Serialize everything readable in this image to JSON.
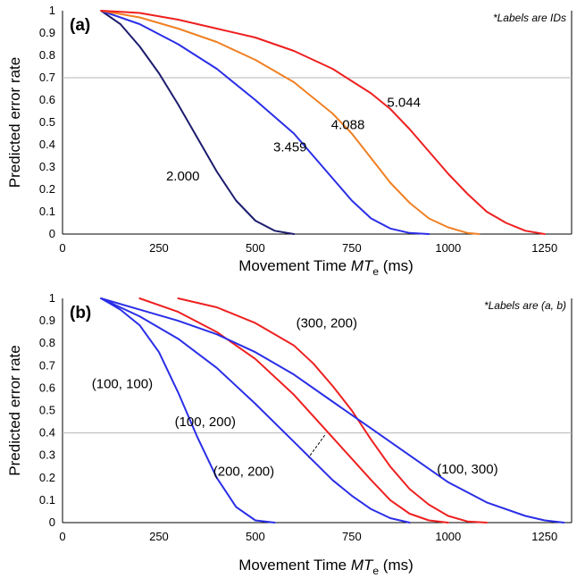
{
  "chart_data": [
    {
      "type": "line",
      "panel_label": "(a)",
      "note": "*Labels are IDs",
      "xlabel": "Movement Time",
      "xlabel_var": "MT",
      "xlabel_sub": "e",
      "xlabel_unit": " (ms)",
      "ylabel": "Predicted error rate",
      "xlim": [
        0,
        1320
      ],
      "ylim": [
        0,
        1
      ],
      "x_ticks": [
        "0",
        "250",
        "500",
        "750",
        "1000",
        "1250"
      ],
      "y_ticks": [
        "0",
        "0.1",
        "0.2",
        "0.3",
        "0.4",
        "0.5",
        "0.6",
        "0.7",
        "0.8",
        "0.9",
        "1"
      ],
      "reference_line_y": 0.7,
      "grid": false,
      "series": [
        {
          "name": "2.000",
          "color": "#1c1c6e",
          "label_at": [
            312,
            0.24
          ],
          "points": [
            [
              100,
              1
            ],
            [
              150,
              0.94
            ],
            [
              200,
              0.84
            ],
            [
              250,
              0.72
            ],
            [
              300,
              0.58
            ],
            [
              350,
              0.43
            ],
            [
              400,
              0.28
            ],
            [
              450,
              0.15
            ],
            [
              500,
              0.06
            ],
            [
              550,
              0.015
            ],
            [
              600,
              0
            ]
          ]
        },
        {
          "name": "3.459",
          "color": "#2a2ee6",
          "label_at": [
            590,
            0.37
          ],
          "points": [
            [
              100,
              1
            ],
            [
              200,
              0.94
            ],
            [
              300,
              0.85
            ],
            [
              400,
              0.74
            ],
            [
              500,
              0.6
            ],
            [
              600,
              0.45
            ],
            [
              650,
              0.35
            ],
            [
              700,
              0.25
            ],
            [
              750,
              0.15
            ],
            [
              800,
              0.07
            ],
            [
              850,
              0.025
            ],
            [
              900,
              0.005
            ],
            [
              950,
              0
            ]
          ]
        },
        {
          "name": "4.088",
          "color": "#f08024",
          "label_at": [
            740,
            0.47
          ],
          "points": [
            [
              100,
              1
            ],
            [
              200,
              0.97
            ],
            [
              300,
              0.92
            ],
            [
              400,
              0.86
            ],
            [
              500,
              0.78
            ],
            [
              600,
              0.68
            ],
            [
              700,
              0.54
            ],
            [
              750,
              0.45
            ],
            [
              800,
              0.34
            ],
            [
              850,
              0.23
            ],
            [
              900,
              0.14
            ],
            [
              950,
              0.07
            ],
            [
              1000,
              0.03
            ],
            [
              1050,
              0.005
            ],
            [
              1080,
              0
            ]
          ]
        },
        {
          "name": "5.044",
          "color": "#ee2020",
          "label_at": [
            885,
            0.57
          ],
          "points": [
            [
              100,
              1
            ],
            [
              200,
              0.99
            ],
            [
              300,
              0.96
            ],
            [
              400,
              0.92
            ],
            [
              500,
              0.88
            ],
            [
              600,
              0.82
            ],
            [
              700,
              0.74
            ],
            [
              800,
              0.63
            ],
            [
              850,
              0.56
            ],
            [
              900,
              0.47
            ],
            [
              950,
              0.37
            ],
            [
              1000,
              0.27
            ],
            [
              1050,
              0.18
            ],
            [
              1100,
              0.1
            ],
            [
              1150,
              0.05
            ],
            [
              1200,
              0.015
            ],
            [
              1250,
              0
            ]
          ]
        }
      ]
    },
    {
      "type": "line",
      "panel_label": "(b)",
      "note": "*Labels are (a, b)",
      "xlabel": "Movement Time",
      "xlabel_var": "MT",
      "xlabel_sub": "e",
      "xlabel_unit": " (ms)",
      "ylabel": "Predicted error rate",
      "xlim": [
        0,
        1320
      ],
      "ylim": [
        0,
        1
      ],
      "x_ticks": [
        "0",
        "250",
        "500",
        "750",
        "1000",
        "1250"
      ],
      "y_ticks": [
        "0",
        "0.1",
        "0.2",
        "0.3",
        "0.4",
        "0.5",
        "0.6",
        "0.7",
        "0.8",
        "0.9",
        "1"
      ],
      "reference_line_y": 0.4,
      "grid": false,
      "series": [
        {
          "name": "(100, 100)",
          "color": "#2a2ee6",
          "label_at": [
            155,
            0.6
          ],
          "points": [
            [
              100,
              1
            ],
            [
              150,
              0.95
            ],
            [
              200,
              0.88
            ],
            [
              250,
              0.76
            ],
            [
              300,
              0.58
            ],
            [
              350,
              0.38
            ],
            [
              400,
              0.2
            ],
            [
              450,
              0.07
            ],
            [
              500,
              0.01
            ],
            [
              550,
              0
            ]
          ]
        },
        {
          "name": "(100, 200)",
          "color": "#2a2ee6",
          "label_at": [
            370,
            0.43
          ],
          "points": [
            [
              100,
              1
            ],
            [
              200,
              0.92
            ],
            [
              300,
              0.82
            ],
            [
              400,
              0.69
            ],
            [
              500,
              0.53
            ],
            [
              600,
              0.36
            ],
            [
              700,
              0.19
            ],
            [
              750,
              0.12
            ],
            [
              800,
              0.06
            ],
            [
              850,
              0.02
            ],
            [
              900,
              0
            ]
          ]
        },
        {
          "name": "(200, 200)",
          "color": "#ee2020",
          "label_at": [
            470,
            0.21
          ],
          "points": [
            [
              200,
              1
            ],
            [
              300,
              0.94
            ],
            [
              400,
              0.85
            ],
            [
              500,
              0.73
            ],
            [
              600,
              0.57
            ],
            [
              700,
              0.38
            ],
            [
              800,
              0.19
            ],
            [
              850,
              0.1
            ],
            [
              900,
              0.04
            ],
            [
              950,
              0.01
            ],
            [
              1000,
              0
            ]
          ]
        },
        {
          "name": "(300, 200)",
          "color": "#ee2020",
          "label_at": [
            685,
            0.87
          ],
          "points": [
            [
              300,
              1
            ],
            [
              400,
              0.96
            ],
            [
              500,
              0.89
            ],
            [
              600,
              0.79
            ],
            [
              650,
              0.71
            ],
            [
              700,
              0.61
            ],
            [
              750,
              0.5
            ],
            [
              800,
              0.37
            ],
            [
              850,
              0.25
            ],
            [
              900,
              0.15
            ],
            [
              950,
              0.08
            ],
            [
              1000,
              0.03
            ],
            [
              1050,
              0.005
            ],
            [
              1100,
              0
            ]
          ]
        },
        {
          "name": "(100, 300)",
          "color": "#2a2ee6",
          "label_at": [
            1050,
            0.22
          ],
          "points": [
            [
              100,
              1
            ],
            [
              200,
              0.95
            ],
            [
              300,
              0.9
            ],
            [
              400,
              0.84
            ],
            [
              500,
              0.76
            ],
            [
              600,
              0.66
            ],
            [
              700,
              0.54
            ],
            [
              800,
              0.42
            ],
            [
              900,
              0.3
            ],
            [
              1000,
              0.18
            ],
            [
              1100,
              0.09
            ],
            [
              1200,
              0.03
            ],
            [
              1250,
              0.01
            ],
            [
              1300,
              0
            ]
          ]
        }
      ],
      "callout": {
        "from": [
          680,
          0.39
        ],
        "to": [
          638,
          0.29
        ]
      }
    }
  ]
}
